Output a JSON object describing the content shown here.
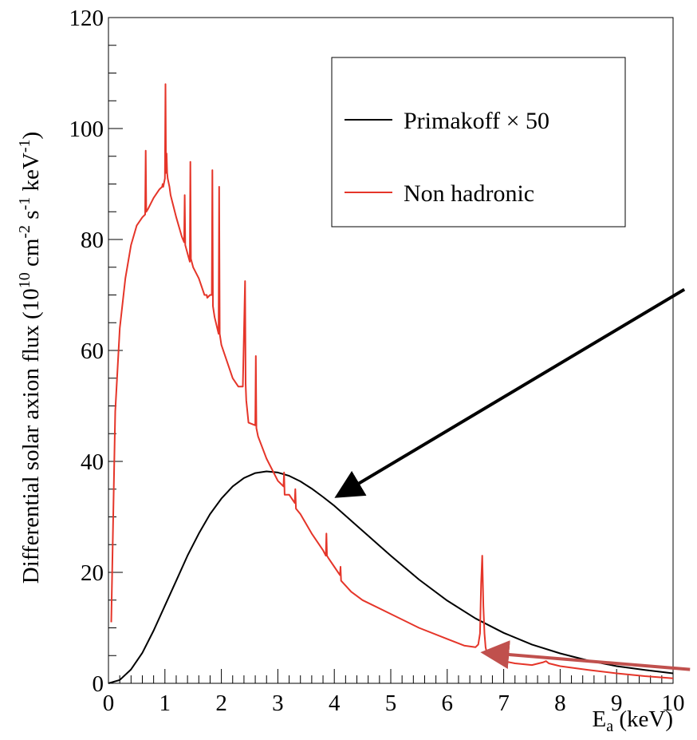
{
  "chart_data": {
    "type": "line",
    "title": "",
    "xlabel": {
      "main": "E",
      "sub": "a",
      "rest": " (keV)"
    },
    "ylabel": {
      "p1": "Differential solar axion flux (10",
      "s1": "10",
      "p2": " cm",
      "s2": "-2",
      "p3": " s",
      "s3": "-1",
      "p4": " keV",
      "s4": "-1",
      "p5": ")"
    },
    "xlim": [
      0,
      10
    ],
    "ylim": [
      0,
      120
    ],
    "x_ticks": [
      "0",
      "1",
      "2",
      "3",
      "4",
      "5",
      "6",
      "7",
      "8",
      "9",
      "10"
    ],
    "y_ticks": [
      "0",
      "20",
      "40",
      "60",
      "80",
      "100",
      "120"
    ],
    "grid": false,
    "legend_position": "top-right",
    "series": [
      {
        "name": "Primakoff × 50",
        "color": "#000000",
        "x": [
          0,
          0.2,
          0.4,
          0.6,
          0.8,
          1.0,
          1.2,
          1.4,
          1.6,
          1.8,
          2.0,
          2.2,
          2.4,
          2.6,
          2.8,
          3.0,
          3.2,
          3.4,
          3.6,
          3.8,
          4.0,
          4.2,
          4.4,
          4.6,
          4.8,
          5.0,
          5.5,
          6.0,
          6.5,
          7.0,
          7.5,
          8.0,
          8.5,
          9.0,
          9.5,
          10.0
        ],
        "y": [
          0,
          0.6,
          2.5,
          5.5,
          9.5,
          14,
          18.5,
          23,
          27,
          30.5,
          33.3,
          35.5,
          37,
          37.9,
          38.2,
          38,
          37.4,
          36.4,
          35.1,
          33.6,
          32,
          30.2,
          28.4,
          26.6,
          24.8,
          23,
          18.7,
          14.9,
          11.7,
          9.1,
          7.0,
          5.4,
          4.1,
          3.1,
          2.4,
          1.8
        ]
      },
      {
        "name": "Non hadronic",
        "color": "#e53529",
        "x": [
          0.05,
          0.08,
          0.12,
          0.2,
          0.3,
          0.4,
          0.5,
          0.6,
          0.65,
          0.66,
          0.67,
          0.7,
          0.8,
          0.9,
          0.95,
          0.96,
          0.97,
          1.0,
          1.01,
          1.02,
          1.03,
          1.04,
          1.05,
          1.08,
          1.1,
          1.2,
          1.3,
          1.34,
          1.35,
          1.36,
          1.4,
          1.44,
          1.45,
          1.46,
          1.5,
          1.6,
          1.7,
          1.74,
          1.75,
          1.8,
          1.83,
          1.84,
          1.85,
          1.88,
          1.95,
          1.96,
          1.97,
          2.0,
          2.1,
          2.2,
          2.3,
          2.38,
          2.42,
          2.43,
          2.44,
          2.48,
          2.6,
          2.61,
          2.62,
          2.65,
          2.8,
          3.0,
          3.1,
          3.11,
          3.12,
          3.2,
          3.3,
          3.31,
          3.32,
          3.4,
          3.6,
          3.8,
          3.85,
          3.86,
          3.87,
          3.9,
          4.0,
          4.1,
          4.11,
          4.12,
          4.3,
          4.5,
          5.0,
          5.5,
          6.0,
          6.3,
          6.5,
          6.55,
          6.58,
          6.6,
          6.62,
          6.64,
          6.66,
          6.68,
          6.7,
          6.75,
          6.8,
          7.0,
          7.2,
          7.5,
          7.7,
          7.75,
          7.8,
          8.0,
          8.5,
          9.0,
          9.5,
          10.0
        ],
        "y": [
          11,
          28,
          49,
          64,
          73,
          79,
          82.5,
          84,
          84.5,
          96,
          85,
          85.5,
          87.5,
          89,
          89.5,
          90,
          89.5,
          91,
          108,
          92,
          95.5,
          92,
          91,
          89.5,
          88,
          84,
          80.5,
          79.5,
          88,
          79,
          77.5,
          76,
          94,
          76.5,
          75,
          73,
          70,
          70,
          69.5,
          70,
          70,
          92.5,
          68,
          66,
          63,
          89.5,
          63,
          61,
          58,
          55,
          53.5,
          53.5,
          72.5,
          54,
          51,
          47,
          46.5,
          59,
          46,
          44.5,
          40.5,
          36.5,
          35.5,
          38,
          34,
          34,
          32.5,
          35,
          31.5,
          30.5,
          27,
          24,
          23,
          27,
          23,
          22.5,
          21,
          19.5,
          21,
          18.5,
          16.5,
          15,
          12.5,
          10,
          8,
          6.8,
          6.5,
          7,
          9,
          18,
          23,
          14,
          9,
          6.5,
          5.5,
          5,
          4.5,
          4,
          3.6,
          3.3,
          3.8,
          4,
          3.6,
          3.1,
          2.4,
          1.8,
          1.3,
          0.9
        ]
      }
    ],
    "annotations": [
      {
        "type": "arrow",
        "color": "#000000",
        "from": [
          10.2,
          71
        ],
        "to": [
          4.1,
          34
        ]
      },
      {
        "type": "arrow",
        "color": "#c0504d",
        "from": [
          10.3,
          2.5
        ],
        "to": [
          6.7,
          5.5
        ]
      }
    ]
  }
}
